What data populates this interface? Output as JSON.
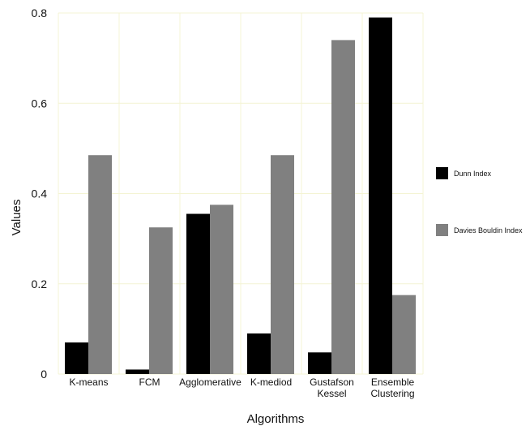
{
  "chart_data": {
    "type": "bar",
    "title": "",
    "xlabel": "Algorithms",
    "ylabel": "Values",
    "ylim": [
      0,
      0.8
    ],
    "yticks": [
      "0",
      "0.2",
      "0.4",
      "0.6",
      "0.8"
    ],
    "categories": [
      [
        "K-means"
      ],
      [
        "FCM"
      ],
      [
        "Agglomerative"
      ],
      [
        "K-mediod"
      ],
      [
        "Gustafson",
        "Kessel"
      ],
      [
        "Ensemble",
        "Clustering"
      ]
    ],
    "series": [
      {
        "name": "Dunn Index",
        "color": "#000000",
        "values": [
          0.07,
          0.01,
          0.355,
          0.09,
          0.048,
          0.79
        ]
      },
      {
        "name": "Davies Bouldin Index",
        "color": "#808080",
        "values": [
          0.485,
          0.325,
          0.375,
          0.485,
          0.74,
          0.175
        ]
      }
    ],
    "grid": true,
    "legend_position": "right"
  }
}
